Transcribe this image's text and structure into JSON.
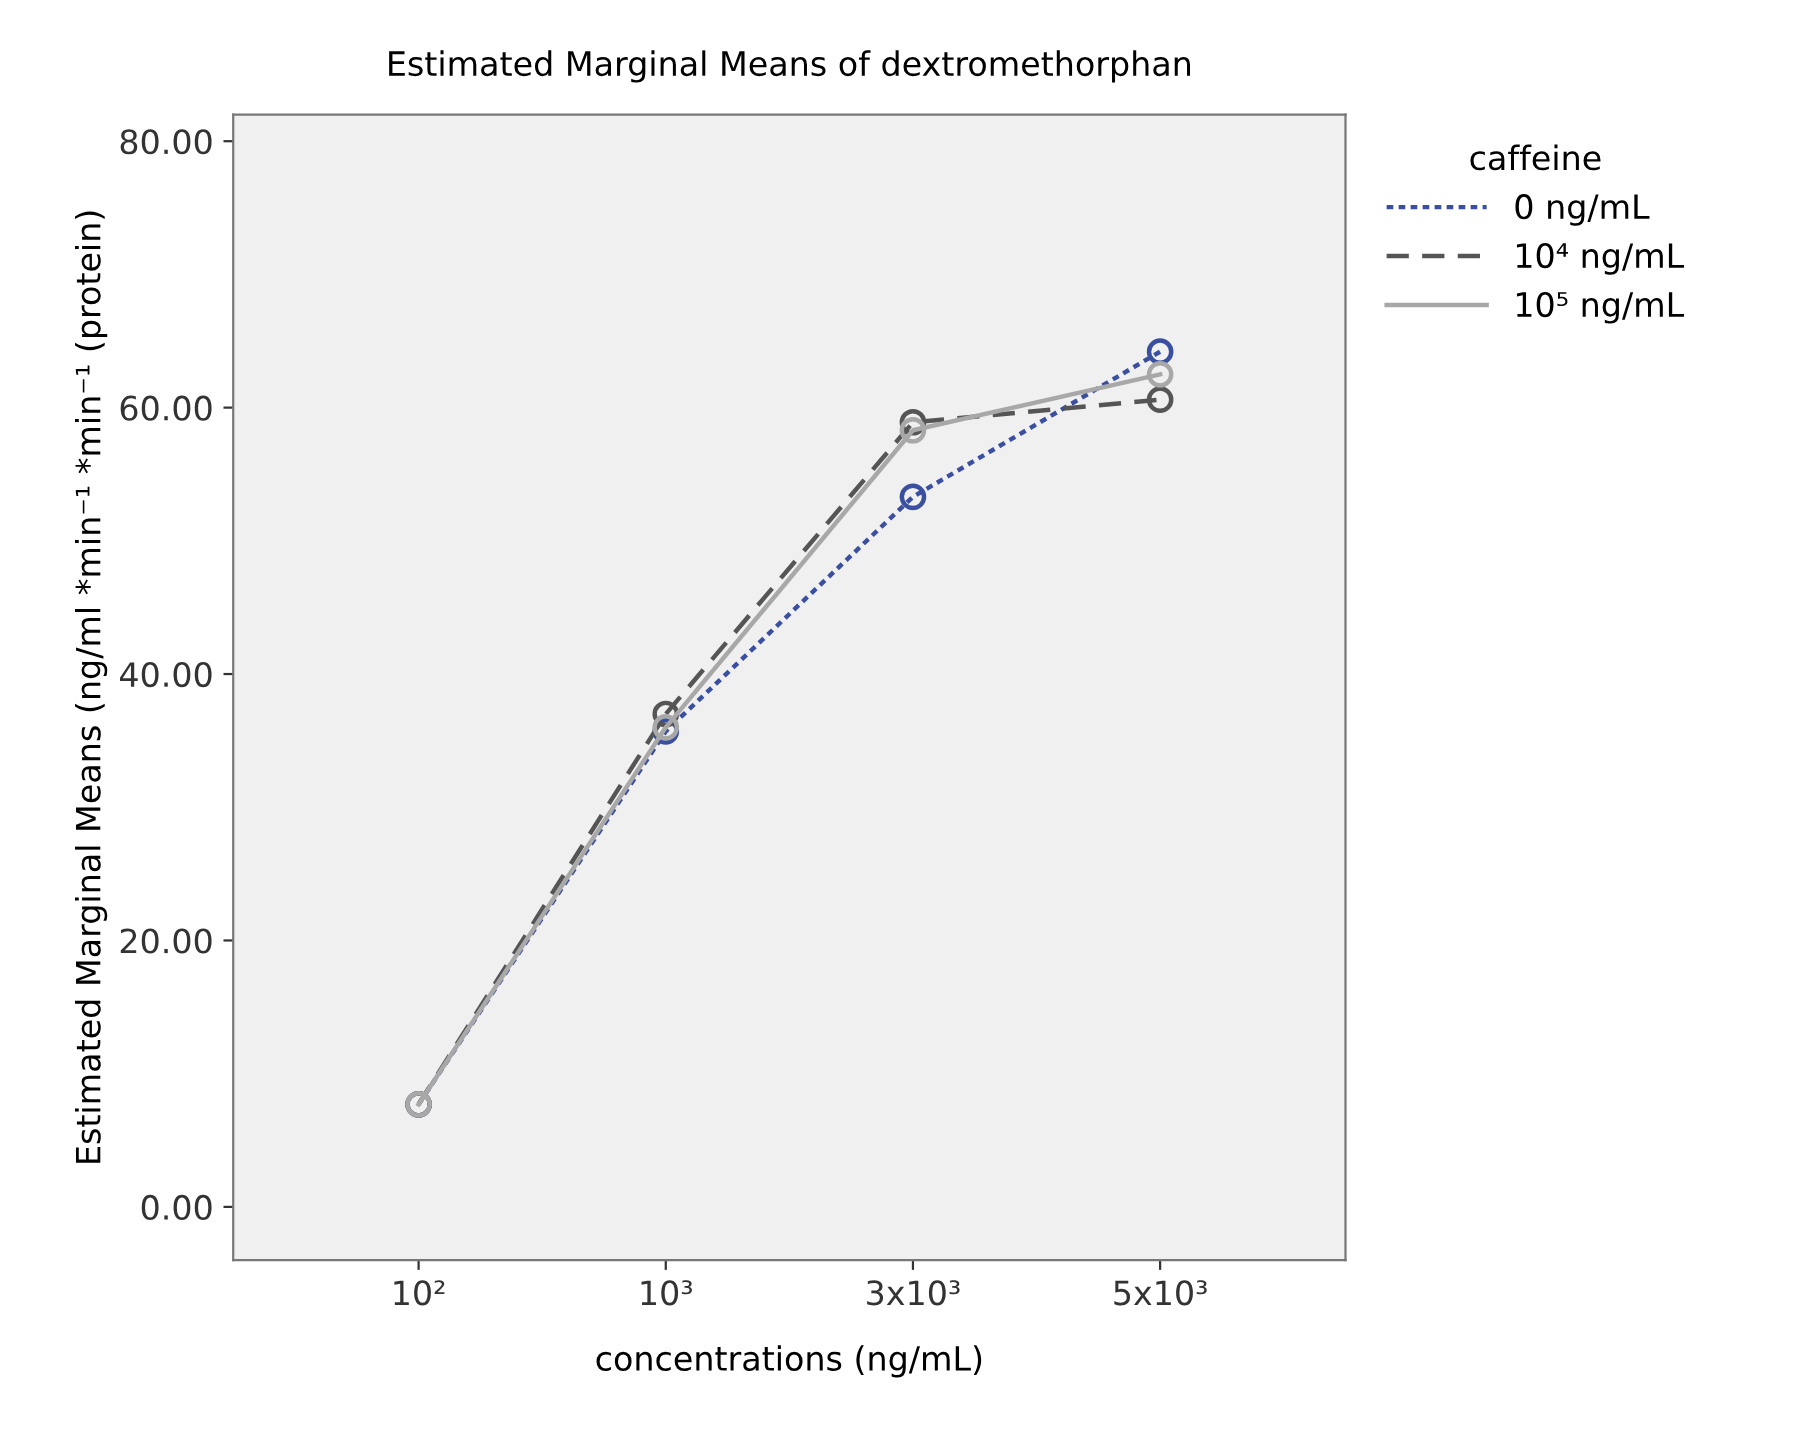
{
  "chart_data": {
    "type": "line",
    "title": "Estimated Marginal Means of dextromethorphan",
    "xlabel": "concentrations (ng/mL)",
    "ylabel": "Estimated Marginal Means (ng/ml *min⁻¹ *min⁻¹ (protein)",
    "legend_title": "caffeine",
    "legend": "top right",
    "marker": "circle",
    "grid": false,
    "categories": [
      "10²",
      "10³",
      "3x10³",
      "5x10³"
    ],
    "ylim": [
      -4,
      82
    ],
    "yticks": [
      {
        "value": 0,
        "label": "0.00"
      },
      {
        "value": 20,
        "label": "20.00"
      },
      {
        "value": 40,
        "label": "40.00"
      },
      {
        "value": 60,
        "label": "60.00"
      },
      {
        "value": 80,
        "label": "80.00"
      }
    ],
    "series": [
      {
        "name": "0 ng/mL",
        "color": "#3a4fa0",
        "line_style": "dotted",
        "values": [
          7.7,
          35.7,
          53.3,
          64.2
        ]
      },
      {
        "name": "10⁴ ng/mL",
        "color": "#555555",
        "line_style": "dashed",
        "values": [
          7.7,
          37.0,
          58.9,
          60.6
        ]
      },
      {
        "name": "10⁵ ng/mL",
        "color": "#a8a8a8",
        "line_style": "solid",
        "values": [
          7.7,
          36.0,
          58.3,
          62.5
        ]
      }
    ]
  }
}
